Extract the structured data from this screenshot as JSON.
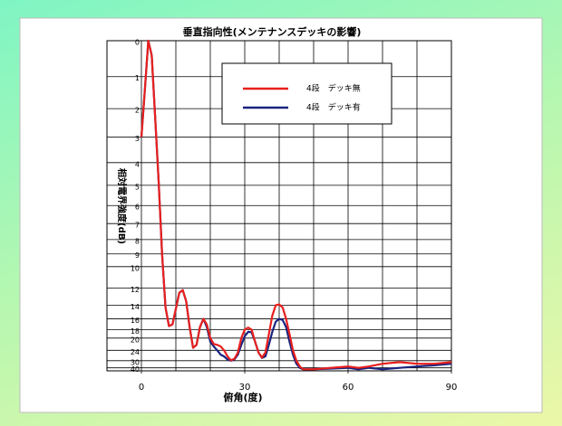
{
  "chart_data": {
    "type": "line",
    "title": "垂直指向性(メンテナンスデッキの影響)",
    "x_label": "俯角(度)",
    "y_label": "相対電界強度(dB)",
    "yscale": "field-strength",
    "xlim": [
      -10,
      90
    ],
    "xticks": [
      0,
      30,
      60,
      90
    ],
    "xgrid_step": 10,
    "ylim": [
      0,
      60
    ],
    "yticks": [
      0,
      1,
      2,
      3,
      4,
      5,
      6,
      7,
      8,
      9,
      10,
      12,
      14,
      16,
      18,
      20,
      24,
      30,
      40
    ],
    "grid": true,
    "legend": "upper right",
    "x": [
      0,
      1,
      2,
      3,
      4,
      5,
      6,
      7,
      8,
      9,
      10,
      11,
      12,
      13,
      14,
      15,
      16,
      17,
      18,
      19,
      20,
      21,
      22,
      23,
      24,
      25,
      26,
      27,
      28,
      29,
      30,
      31,
      32,
      33,
      34,
      35,
      36,
      37,
      38,
      39,
      40,
      41,
      42,
      43,
      44,
      45,
      46,
      47,
      50,
      55,
      60,
      63,
      66,
      70,
      75,
      80,
      85,
      90
    ],
    "series": [
      {
        "name": "4段　デッキ無",
        "color": "#e8201e",
        "values": [
          3,
          1.4,
          0,
          0.4,
          2.3,
          4.8,
          9,
          14.3,
          17.3,
          17,
          14.5,
          12.5,
          12.2,
          13.5,
          17.5,
          23,
          22,
          17.5,
          16,
          17,
          20,
          21.7,
          22,
          22.5,
          24,
          27,
          29.7,
          28.5,
          25,
          20,
          18,
          17.6,
          18,
          21,
          25,
          27.7,
          25,
          19,
          15.5,
          14,
          13.9,
          14.3,
          16,
          19,
          24,
          30,
          37,
          45,
          45,
          40,
          37,
          40,
          37,
          33,
          31.3,
          33,
          33,
          31.3
        ]
      },
      {
        "name": "4段　デッキ有",
        "color": "#1a237e",
        "values": [
          3,
          1.4,
          0,
          0.4,
          2.3,
          4.8,
          9,
          14.3,
          17.3,
          17,
          14.5,
          12.5,
          12.2,
          13.5,
          17.5,
          23,
          22,
          17.5,
          16,
          17.5,
          21,
          22.5,
          24,
          26,
          27,
          29,
          30,
          29,
          26,
          22,
          19.5,
          18.5,
          18.6,
          21,
          25,
          28,
          27,
          22,
          18.5,
          16.5,
          16,
          16.2,
          17.5,
          21,
          26,
          33,
          40,
          45,
          45,
          42,
          40,
          45,
          40,
          45,
          40,
          37,
          35,
          33
        ]
      }
    ]
  }
}
